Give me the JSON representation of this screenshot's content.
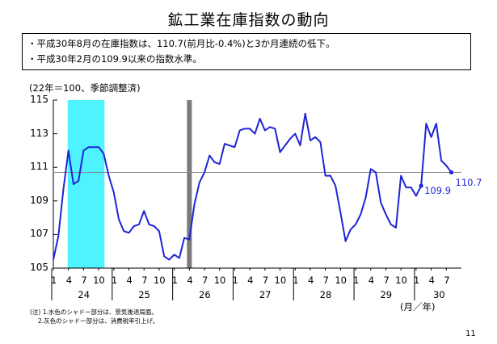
{
  "title": "鉱工業在庫指数の動向",
  "bullets": [
    "・平成30年8月の在庫指数は、110.7(前月比-0.4%)と3か月連続の低下。",
    "・平成30年2月の109.9以来の指数水準。"
  ],
  "unit_note": "(22年＝100、季節調整済)",
  "notes": [
    "(注) 1.水色のシャドー部分は、景気後退局面。",
    "2.灰色のシャドー部分は、消費税率引上げ。"
  ],
  "page_number": "11",
  "colors": {
    "line": "#1f24d6",
    "recession_shade": "#4ff3ff",
    "tax_bar": "#7a7a7a",
    "ref_line": "#888888"
  },
  "chart_data": {
    "type": "line",
    "xlabel": "(月／年)",
    "ylim": [
      105,
      115
    ],
    "yticks": [
      "105",
      "107",
      "109",
      "111",
      "113",
      "115"
    ],
    "x_month_labels": [
      "1",
      "4",
      "7",
      "10",
      "1",
      "4",
      "7",
      "10",
      "1",
      "4",
      "7",
      "10",
      "1",
      "4",
      "7",
      "10",
      "1",
      "4",
      "7",
      "10",
      "1",
      "4",
      "7",
      "10",
      "1",
      "4",
      "7"
    ],
    "year_labels": [
      "24",
      "25",
      "26",
      "27",
      "28",
      "29",
      "30"
    ],
    "recession_shade": {
      "from": "2012-04",
      "to": "2012-11"
    },
    "tax_hike_marker": "2014-04",
    "reference_level": 110.7,
    "annotations": [
      {
        "x": "2018-02",
        "y": 109.9,
        "label": "109.9"
      },
      {
        "x": "2018-08",
        "y": 110.7,
        "label": "110.7"
      }
    ],
    "series": [
      {
        "x": [
          "2012-01",
          "2012-02",
          "2012-03",
          "2012-04",
          "2012-05",
          "2012-06",
          "2012-07",
          "2012-08",
          "2012-09",
          "2012-10",
          "2012-11",
          "2012-12",
          "2013-01",
          "2013-02",
          "2013-03",
          "2013-04",
          "2013-05",
          "2013-06",
          "2013-07",
          "2013-08",
          "2013-09",
          "2013-10",
          "2013-11",
          "2013-12",
          "2014-01",
          "2014-02",
          "2014-03",
          "2014-04",
          "2014-05",
          "2014-06",
          "2014-07",
          "2014-08",
          "2014-09",
          "2014-10",
          "2014-11",
          "2014-12",
          "2015-01",
          "2015-02",
          "2015-03",
          "2015-04",
          "2015-05",
          "2015-06",
          "2015-07",
          "2015-08",
          "2015-09",
          "2015-10",
          "2015-11",
          "2015-12",
          "2016-01",
          "2016-02",
          "2016-03",
          "2016-04",
          "2016-05",
          "2016-06",
          "2016-07",
          "2016-08",
          "2016-09",
          "2016-10",
          "2016-11",
          "2016-12",
          "2017-01",
          "2017-02",
          "2017-03",
          "2017-04",
          "2017-05",
          "2017-06",
          "2017-07",
          "2017-08",
          "2017-09",
          "2017-10",
          "2017-11",
          "2017-12",
          "2018-01",
          "2018-02",
          "2018-03",
          "2018-04",
          "2018-05",
          "2018-06",
          "2018-07",
          "2018-08"
        ],
        "values": [
          105.5,
          106.9,
          109.7,
          112.0,
          110.0,
          110.2,
          112.0,
          112.2,
          112.2,
          112.2,
          111.8,
          110.5,
          109.5,
          107.9,
          107.2,
          107.1,
          107.5,
          107.6,
          108.4,
          107.6,
          107.5,
          107.2,
          105.7,
          105.5,
          105.8,
          105.6,
          106.8,
          106.7,
          108.8,
          110.1,
          110.7,
          111.7,
          111.3,
          111.2,
          112.4,
          112.3,
          112.2,
          113.2,
          113.3,
          113.3,
          113.0,
          113.9,
          113.2,
          113.4,
          113.3,
          111.9,
          112.3,
          112.7,
          113.0,
          112.3,
          114.2,
          112.6,
          112.8,
          112.5,
          110.5,
          110.5,
          109.9,
          108.3,
          106.6,
          107.3,
          107.6,
          108.2,
          109.2,
          110.9,
          110.7,
          108.9,
          108.2,
          107.6,
          107.4,
          110.5,
          109.8,
          109.8,
          109.3,
          109.9,
          113.6,
          112.8,
          113.6,
          111.4,
          111.1,
          110.7
        ]
      }
    ]
  }
}
